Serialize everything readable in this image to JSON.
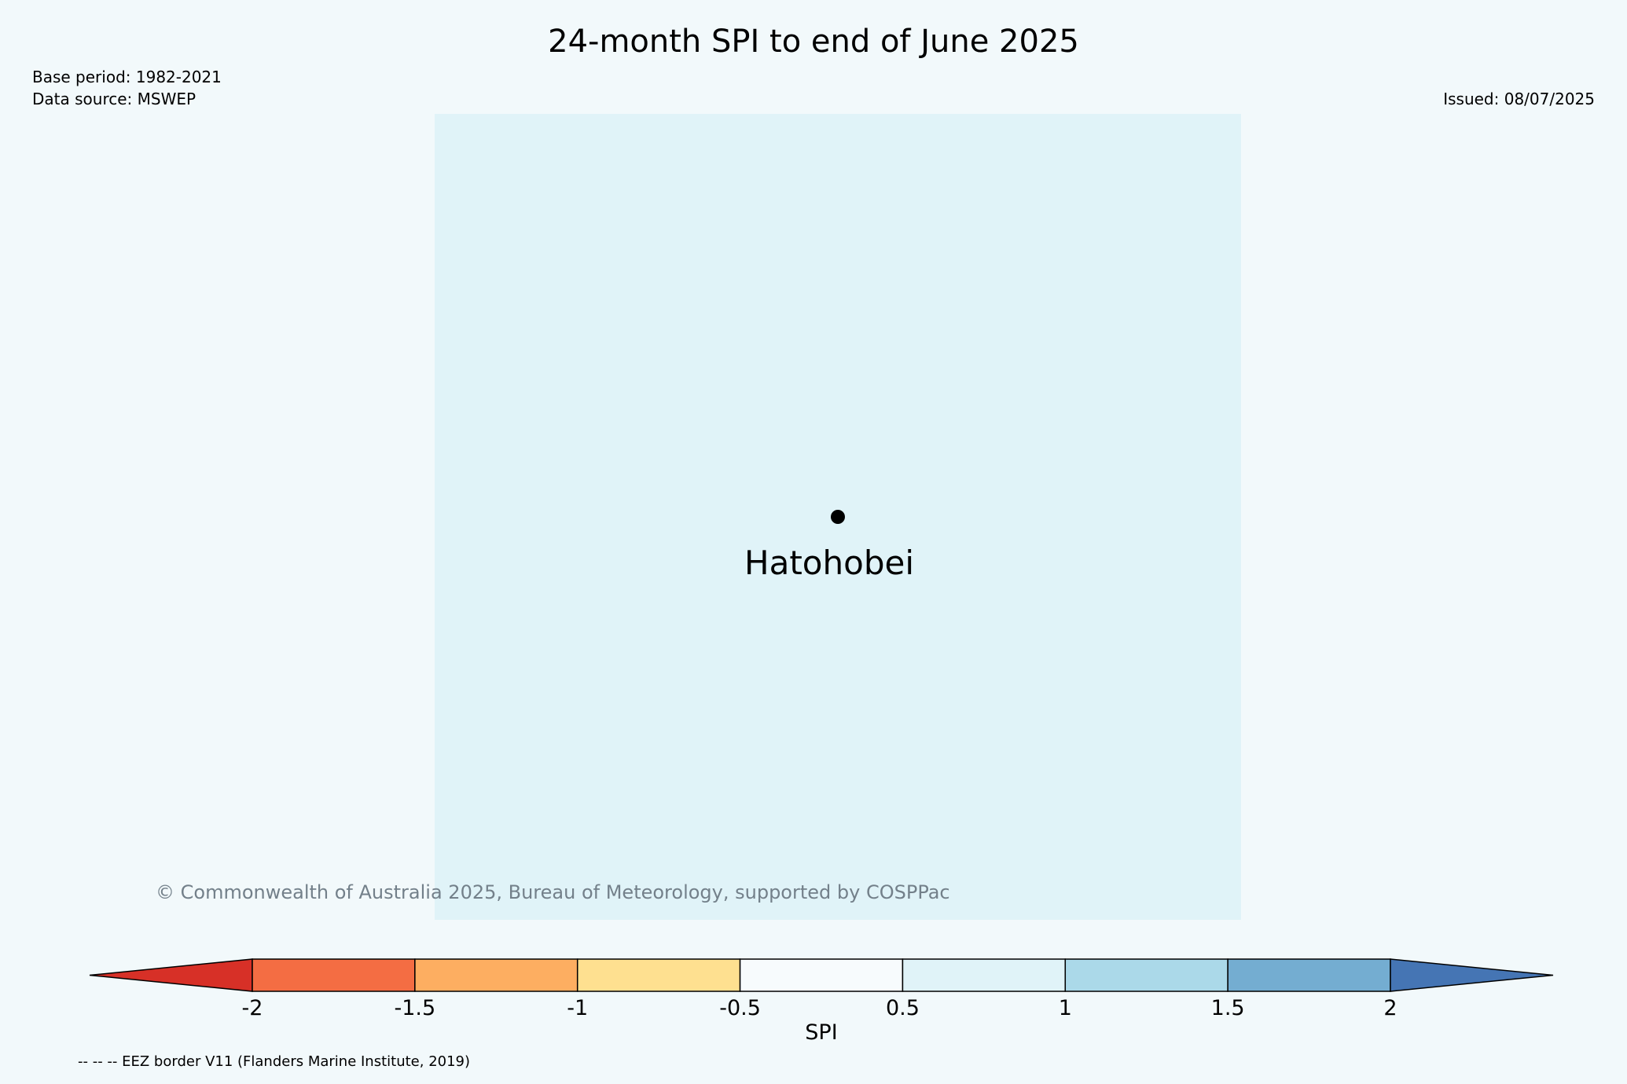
{
  "title": "24-month SPI to end of June 2025",
  "base_period": "Base period: 1982-2021",
  "data_source": "Data source: MSWEP",
  "issued": "Issued: 08/07/2025",
  "station": {
    "name": "Hatohobei"
  },
  "copyright": "© Commonwealth of Australia 2025, Bureau of Meteorology, supported by COSPPac",
  "footer_note": "-- -- -- EEZ border V11 (Flanders Marine Institute, 2019)",
  "colorbar": {
    "label": "SPI",
    "ticks": [
      "-2",
      "-1.5",
      "-1",
      "-0.5",
      "0.5",
      "1",
      "1.5",
      "2"
    ],
    "colors": [
      "#d73027",
      "#f46d43",
      "#fdae61",
      "#fee090",
      "#f7fbfd",
      "#e0f3f8",
      "#abd9e9",
      "#74add1",
      "#4575b4"
    ],
    "extend": "both"
  },
  "map": {
    "background_color": "#e0f3f8",
    "page_background": "#f2f9fb"
  }
}
